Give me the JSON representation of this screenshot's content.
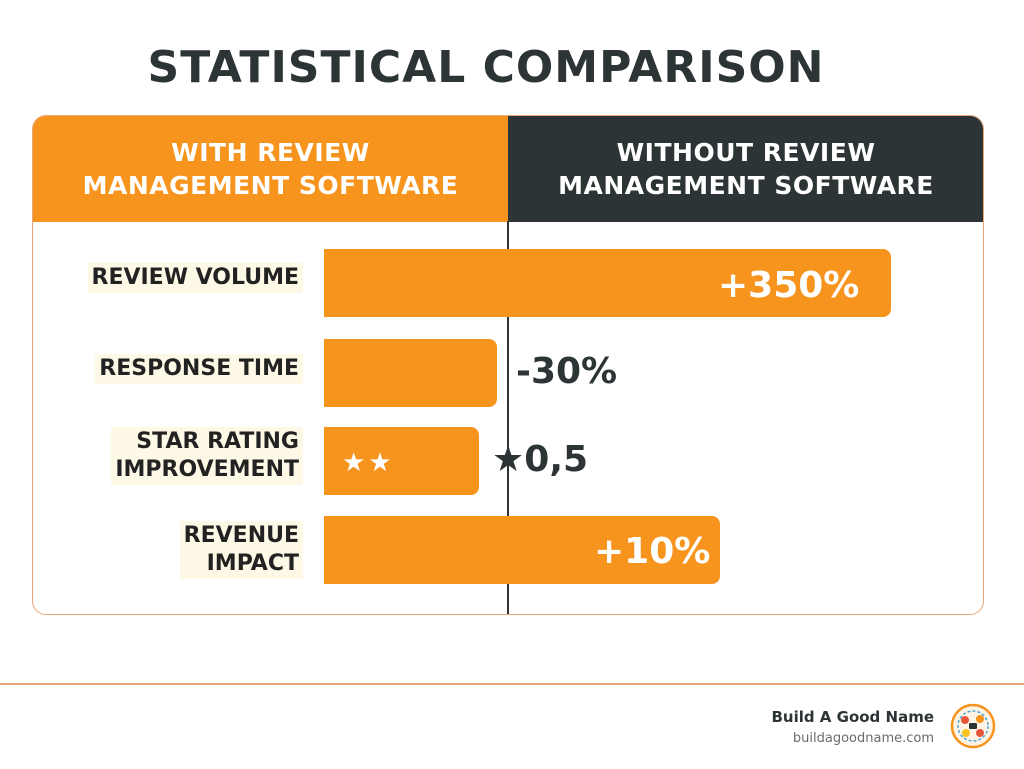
{
  "title": "STATISTICAL COMPARISON",
  "columns": {
    "with": [
      "WITH REVIEW",
      "MANAGEMENT SOFTWARE"
    ],
    "without": [
      "WITHOUT REVIEW",
      "MANAGEMENT SOFTWARE"
    ]
  },
  "colors": {
    "accent": "#f7941e",
    "dark": "#2d3436",
    "border": "#e8a77a"
  },
  "chart_data": {
    "type": "bar",
    "title": "STATISTICAL COMPARISON",
    "categories": [
      [
        "REVIEW VOLUME"
      ],
      [
        "RESPONSE TIME"
      ],
      [
        "STAR RATING",
        "IMPROVEMENT"
      ],
      [
        "REVENUE",
        "IMPACT"
      ]
    ],
    "value_labels": [
      "+350%",
      "-30%",
      "★0,5",
      "+10%"
    ],
    "star_glyphs": "★★",
    "xlabel": "",
    "ylabel": ""
  },
  "brand": {
    "name": "Build A Good Name",
    "url": "buildagoodname.com",
    "logo_icon": "logo-icon"
  }
}
